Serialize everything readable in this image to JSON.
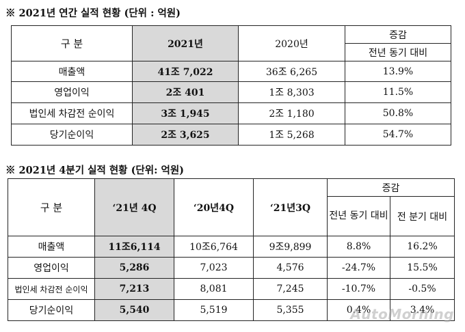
{
  "annual": {
    "title": "※  2021년  연간 실적 현황 (단위 : 억원)",
    "headers": {
      "category": "구 분",
      "y2021": "2021년",
      "y2020": "2020년",
      "change": "증감",
      "yoy": "전년 동기 대비"
    },
    "rows": [
      {
        "label": "매출액",
        "v2021": "41조 7,022",
        "v2020": "36조 6,265",
        "yoy": "13.9%"
      },
      {
        "label": "영업이익",
        "v2021": "2조 401",
        "v2020": "1조 8,303",
        "yoy": "11.5%"
      },
      {
        "label": "법인세 차감전 순이익",
        "v2021": "3조 1,945",
        "v2020": "2조 1,180",
        "yoy": "50.8%"
      },
      {
        "label": "당기순이익",
        "v2021": "2조 3,625",
        "v2020": "1조 5,268",
        "yoy": "54.7%"
      }
    ]
  },
  "quarterly": {
    "title": "※  2021년  4분기 실적 현황 (단위: 억원)",
    "headers": {
      "category": "구 분",
      "q21_4": "‘21년 4Q",
      "q20_4": "‘20년4Q",
      "q21_3": "‘21년3Q",
      "change": "증감",
      "yoy": "전년 동기 대비",
      "qoq": "전 분기 대비"
    },
    "rows": [
      {
        "label": "매출액",
        "q21_4": "11조6,114",
        "q20_4": "10조6,764",
        "q21_3": "9조9,899",
        "yoy": "8.8%",
        "qoq": "16.2%"
      },
      {
        "label": "영업이익",
        "q21_4": "5,286",
        "q20_4": "7,023",
        "q21_3": "4,576",
        "yoy": "-24.7%",
        "qoq": "15.5%"
      },
      {
        "label": "법인세 차감전 순이익",
        "q21_4": "7,213",
        "q20_4": "8,081",
        "q21_3": "7,245",
        "yoy": "-10.7%",
        "qoq": "-0.5%"
      },
      {
        "label": "당기순이익",
        "q21_4": "5,540",
        "q20_4": "5,519",
        "q21_3": "5,355",
        "yoy": "0.4%",
        "qoq": "3.4%"
      }
    ]
  },
  "watermark": "AutoMorning"
}
